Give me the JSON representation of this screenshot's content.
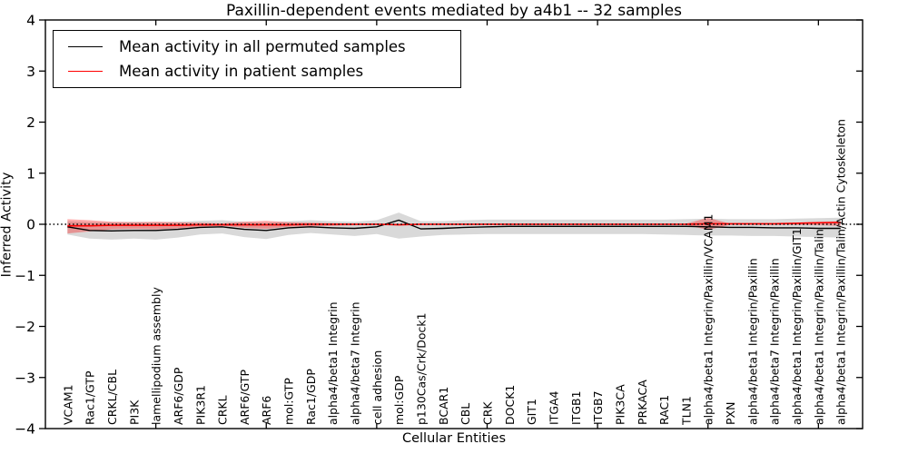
{
  "figure": {
    "title": "Paxillin-dependent events mediated by a4b1 -- 32 samples",
    "xlabel": "Cellular Entities",
    "ylabel": "Inferred Activity"
  },
  "legend": {
    "items": [
      {
        "label": "Mean activity in all permuted samples",
        "color": "#000000"
      },
      {
        "label": "Mean activity in patient samples",
        "color": "#ff0000"
      }
    ]
  },
  "chart_data": {
    "type": "line",
    "title": "Paxillin-dependent events mediated by a4b1 -- 32 samples",
    "xlabel": "Cellular Entities",
    "ylabel": "Inferred Activity",
    "ylim": [
      -4,
      4
    ],
    "yticks": [
      4,
      3,
      2,
      1,
      0,
      -1,
      -2,
      -3,
      -4
    ],
    "zero_reference_line": true,
    "grid": false,
    "legend_position": "upper left",
    "categories": [
      "VCAM1",
      "Rac1/GTP",
      "CRKL/CBL",
      "PI3K",
      "lamellipodium assembly",
      "ARF6/GDP",
      "PIK3R1",
      "CRKL",
      "ARF6/GTP",
      "ARF6",
      "mol:GTP",
      "Rac1/GDP",
      "alpha4/beta1 Integrin",
      "alpha4/beta7 Integrin",
      "cell adhesion",
      "mol:GDP",
      "p130Cas/Crk/Dock1",
      "BCAR1",
      "CBL",
      "CRK",
      "DOCK1",
      "GIT1",
      "ITGA4",
      "ITGB1",
      "ITGB7",
      "PIK3CA",
      "PRKACA",
      "RAC1",
      "TLN1",
      "alpha4/beta1 Integrin/Paxillin/VCAM1",
      "PXN",
      "alpha4/beta1 Integrin/Paxillin",
      "alpha4/beta7 Integrin/Paxillin",
      "alpha4/beta1 Integrin/Paxillin/GIT1",
      "alpha4/beta1 Integrin/Paxillin/Talin",
      "alpha4/beta1 Integrin/Paxillin/Talin/Actin Cytoskeleton"
    ],
    "series": [
      {
        "name": "Mean activity in all permuted samples",
        "color": "#000000",
        "band_color": "rgba(130,130,130,0.30)",
        "values": [
          -0.05,
          -0.12,
          -0.13,
          -0.12,
          -0.12,
          -0.1,
          -0.06,
          -0.05,
          -0.1,
          -0.12,
          -0.07,
          -0.05,
          -0.07,
          -0.08,
          -0.05,
          0.08,
          -0.09,
          -0.08,
          -0.06,
          -0.05,
          -0.04,
          -0.04,
          -0.04,
          -0.04,
          -0.04,
          -0.04,
          -0.04,
          -0.04,
          -0.04,
          -0.05,
          -0.06,
          -0.06,
          -0.07,
          -0.07,
          -0.08,
          -0.08
        ],
        "band_upper": [
          0.06,
          0.04,
          0.04,
          0.05,
          0.04,
          0.05,
          0.07,
          0.08,
          0.05,
          0.03,
          0.06,
          0.08,
          0.06,
          0.05,
          0.08,
          0.23,
          0.06,
          0.06,
          0.08,
          0.09,
          0.09,
          0.09,
          0.09,
          0.09,
          0.09,
          0.09,
          0.09,
          0.09,
          0.1,
          0.11,
          0.1,
          0.1,
          0.1,
          0.11,
          0.12,
          0.13
        ],
        "band_lower": [
          -0.2,
          -0.28,
          -0.3,
          -0.28,
          -0.3,
          -0.26,
          -0.2,
          -0.18,
          -0.25,
          -0.29,
          -0.21,
          -0.17,
          -0.2,
          -0.23,
          -0.19,
          -0.28,
          -0.24,
          -0.21,
          -0.2,
          -0.19,
          -0.19,
          -0.19,
          -0.19,
          -0.19,
          -0.19,
          -0.19,
          -0.19,
          -0.2,
          -0.21,
          -0.22,
          -0.22,
          -0.23,
          -0.23,
          -0.24,
          -0.25,
          -0.26
        ]
      },
      {
        "name": "Mean activity in patient samples",
        "color": "#ff0000",
        "band_color": "rgba(255,0,0,0.32)",
        "values": [
          -0.03,
          -0.03,
          -0.02,
          -0.02,
          -0.02,
          -0.02,
          -0.01,
          -0.01,
          -0.01,
          -0.01,
          -0.01,
          0,
          0,
          0,
          0,
          -0.01,
          0,
          0,
          0,
          0,
          0,
          0,
          0,
          0,
          0,
          0,
          0,
          0,
          0,
          0.01,
          0.01,
          0.01,
          0.01,
          0.02,
          0.03,
          0.04
        ],
        "band_upper": [
          0.1,
          0.08,
          0.05,
          0.04,
          0.05,
          0.04,
          0.03,
          0.02,
          0.05,
          0.07,
          0.04,
          0.03,
          0.02,
          0.01,
          0.01,
          0.01,
          0.01,
          0.01,
          0.01,
          0.01,
          0.01,
          0.01,
          0.01,
          0.01,
          0.01,
          0.01,
          0.01,
          0.01,
          0.01,
          0.13,
          0.01,
          0.01,
          0.01,
          0.01,
          0.02,
          0.05
        ],
        "band_lower": [
          -0.18,
          -0.14,
          -0.1,
          -0.09,
          -0.1,
          -0.08,
          -0.05,
          -0.03,
          -0.07,
          -0.09,
          -0.05,
          -0.04,
          -0.03,
          -0.02,
          -0.01,
          -0.02,
          -0.01,
          -0.01,
          -0.01,
          -0.01,
          -0.01,
          -0.01,
          -0.01,
          -0.01,
          -0.01,
          -0.01,
          -0.01,
          -0.01,
          -0.01,
          -0.11,
          -0.01,
          -0.01,
          -0.01,
          -0.01,
          -0.02,
          -0.03
        ]
      }
    ]
  }
}
